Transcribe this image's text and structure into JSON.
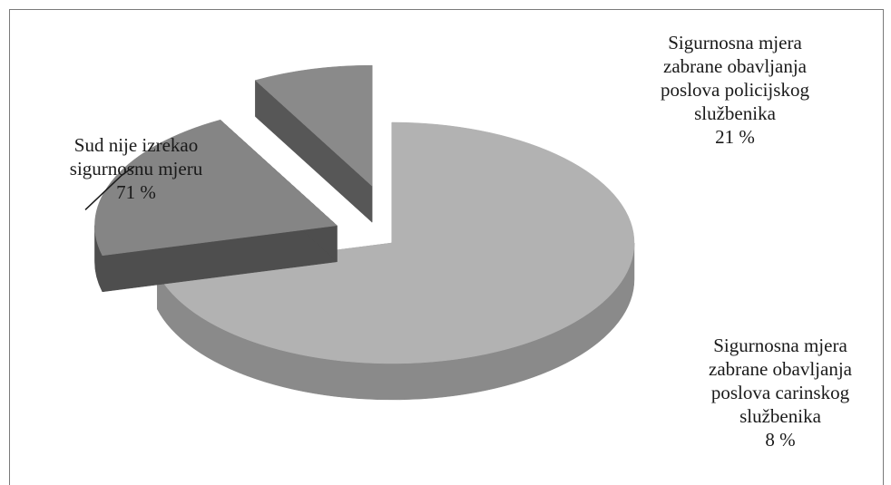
{
  "chart_data": {
    "type": "pie",
    "style": "3d-exploded",
    "slices": [
      {
        "label_lines": [
          "Sud nije izrekao",
          "sigurnosnu mjeru"
        ],
        "value": 71,
        "value_text": "71 %",
        "top_color": "#b2b2b2",
        "side_color": "#8a8a8a"
      },
      {
        "label_lines": [
          "Sigurnosna mjera",
          "zabrane obavljanja",
          "poslova policijskog",
          "službenika"
        ],
        "value": 21,
        "value_text": "21 %",
        "top_color": "#858585",
        "side_color": "#4e4e4e"
      },
      {
        "label_lines": [
          "Sigurnosna mjera",
          "zabrane obavljanja",
          "poslova carinskog",
          "službenika"
        ],
        "value": 8,
        "value_text": "8 %",
        "top_color": "#8a8a8a",
        "side_color": "#575757"
      }
    ]
  }
}
